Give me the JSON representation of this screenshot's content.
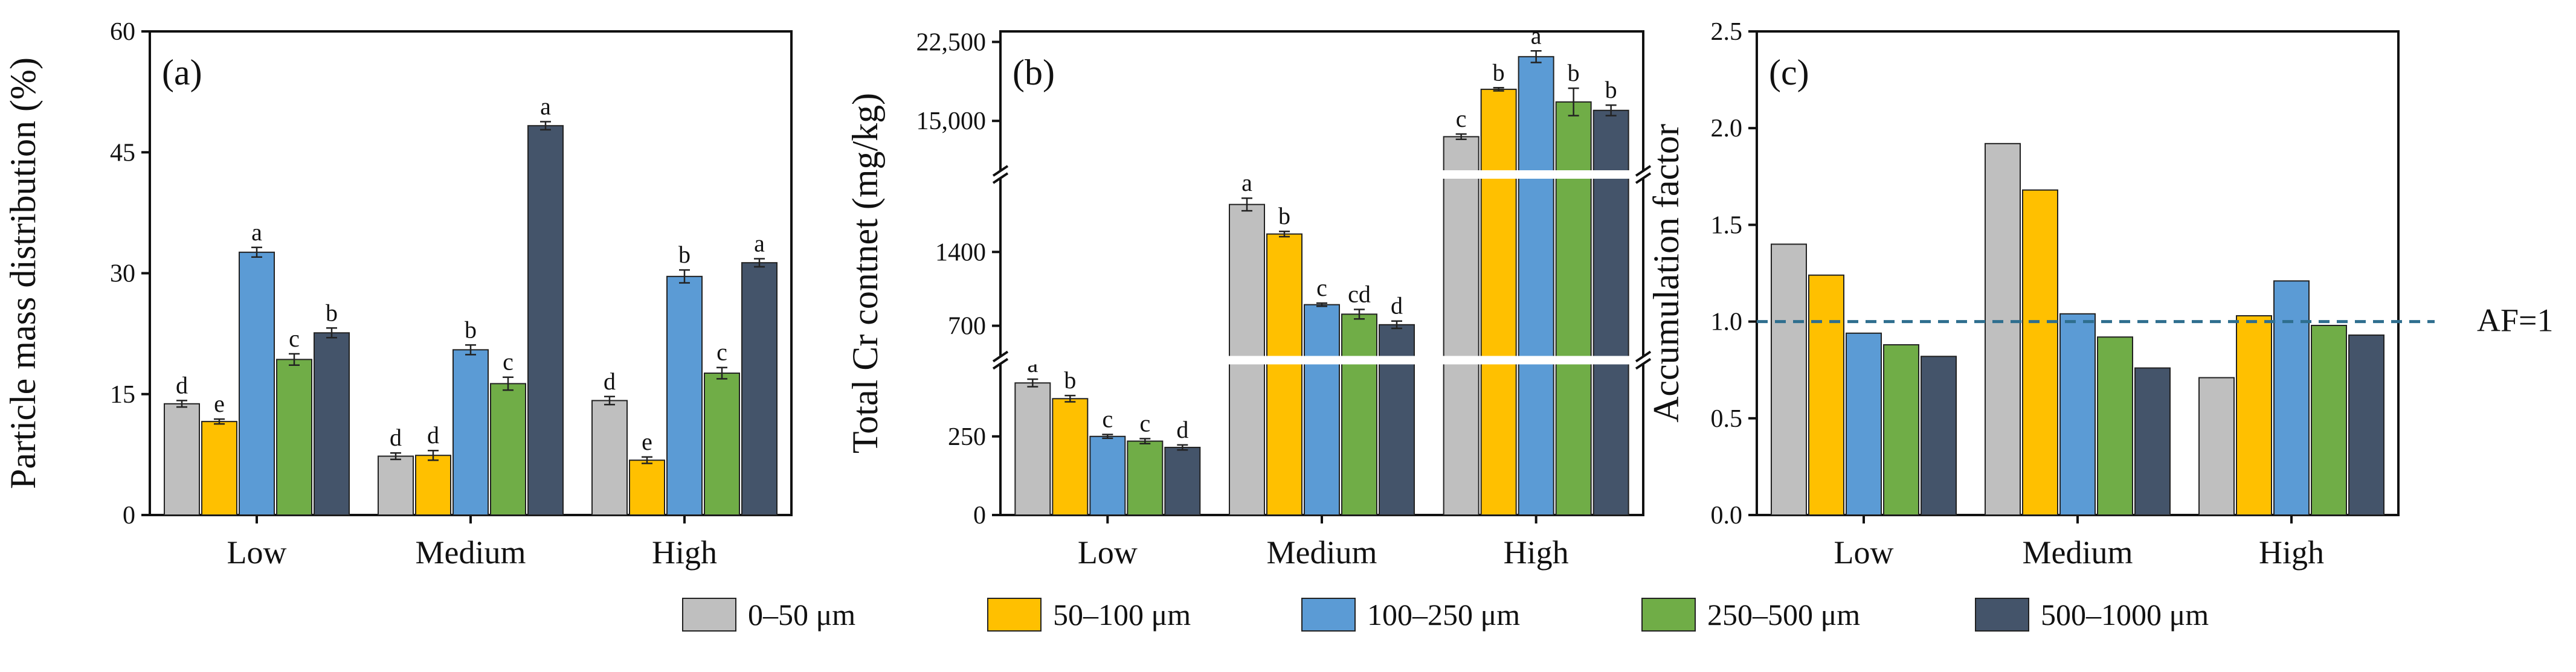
{
  "colors": [
    "#bfbfbf",
    "#ffc000",
    "#5b9bd5",
    "#70ad47",
    "#44546a"
  ],
  "legend": [
    "0–50 μm",
    "50–100 μm",
    "100–250 μm",
    "250–500 μm",
    "500–1000 μm"
  ],
  "chart_data": [
    {
      "type": "bar",
      "panel_label": "(a)",
      "ylabel": "Particle mass distribution (%)",
      "xlabel": "",
      "ylim": [
        0,
        60
      ],
      "yticks": [
        0,
        15,
        30,
        45,
        60
      ],
      "ytick_labels": [
        "0",
        "15",
        "30",
        "45",
        "60"
      ],
      "categories": [
        "Low",
        "Medium",
        "High"
      ],
      "series": [
        {
          "name": "0–50 μm",
          "values": [
            13.8,
            7.3,
            14.2
          ],
          "errors": [
            0.4,
            0.4,
            0.5
          ],
          "letters": [
            "d",
            "d",
            "d"
          ]
        },
        {
          "name": "50–100 μm",
          "values": [
            11.6,
            7.4,
            6.8
          ],
          "errors": [
            0.3,
            0.6,
            0.4
          ],
          "letters": [
            "e",
            "d",
            "e"
          ]
        },
        {
          "name": "100–250 μm",
          "values": [
            32.6,
            20.5,
            29.6
          ],
          "errors": [
            0.6,
            0.6,
            0.8
          ],
          "letters": [
            "a",
            "b",
            "b"
          ]
        },
        {
          "name": "250–500 μm",
          "values": [
            19.3,
            16.3,
            17.6
          ],
          "errors": [
            0.7,
            0.8,
            0.7
          ],
          "letters": [
            "c",
            "c",
            "c"
          ]
        },
        {
          "name": "500–1000 μm",
          "values": [
            22.6,
            48.3,
            31.3
          ],
          "errors": [
            0.6,
            0.5,
            0.5
          ],
          "letters": [
            "b",
            "a",
            "a"
          ]
        }
      ]
    },
    {
      "type": "bar",
      "panel_label": "(b)",
      "ylabel": "Total Cr contnet (mg/kg)",
      "xlabel": "",
      "axis_breaks": true,
      "ytick_labels": [
        "0",
        "250",
        "700",
        "1400",
        "15,000",
        "22,500"
      ],
      "categories": [
        "Low",
        "Medium",
        "High"
      ],
      "series": [
        {
          "name": "0–50 μm",
          "values": [
            420,
            1850,
            13500
          ],
          "errors": [
            12,
            60,
            250
          ],
          "letters": [
            "a",
            "a",
            "c"
          ]
        },
        {
          "name": "50–100 μm",
          "values": [
            370,
            1570,
            18000
          ],
          "errors": [
            10,
            25,
            150
          ],
          "letters": [
            "b",
            "b",
            "b"
          ]
        },
        {
          "name": "100–250 μm",
          "values": [
            250,
            900,
            21100
          ],
          "errors": [
            6,
            15,
            550
          ],
          "letters": [
            "c",
            "c",
            "a"
          ]
        },
        {
          "name": "250–500 μm",
          "values": [
            235,
            810,
            16800
          ],
          "errors": [
            8,
            45,
            1300
          ],
          "letters": [
            "c",
            "cd",
            "b"
          ]
        },
        {
          "name": "500–1000 μm",
          "values": [
            215,
            710,
            16000
          ],
          "errors": [
            8,
            35,
            500
          ],
          "letters": [
            "d",
            "d",
            "b"
          ]
        }
      ]
    },
    {
      "type": "bar",
      "panel_label": "(c)",
      "ylabel": "Accumulation factor",
      "xlabel": "",
      "ylim": [
        0,
        2.5
      ],
      "yticks": [
        0,
        0.5,
        1.0,
        1.5,
        2.0,
        2.5
      ],
      "ytick_labels": [
        "0.0",
        "0.5",
        "1.0",
        "1.5",
        "2.0",
        "2.5"
      ],
      "categories": [
        "Low",
        "Medium",
        "High"
      ],
      "reference_line": {
        "y": 1.0,
        "label": "AF=1",
        "color": "#2e6e8e"
      },
      "series": [
        {
          "name": "0–50 μm",
          "values": [
            1.4,
            1.92,
            0.71
          ]
        },
        {
          "name": "50–100 μm",
          "values": [
            1.24,
            1.68,
            1.03
          ]
        },
        {
          "name": "100–250 μm",
          "values": [
            0.94,
            1.04,
            1.21
          ]
        },
        {
          "name": "250–500 μm",
          "values": [
            0.88,
            0.92,
            0.98
          ]
        },
        {
          "name": "500–1000 μm",
          "values": [
            0.82,
            0.76,
            0.93
          ]
        }
      ]
    }
  ]
}
